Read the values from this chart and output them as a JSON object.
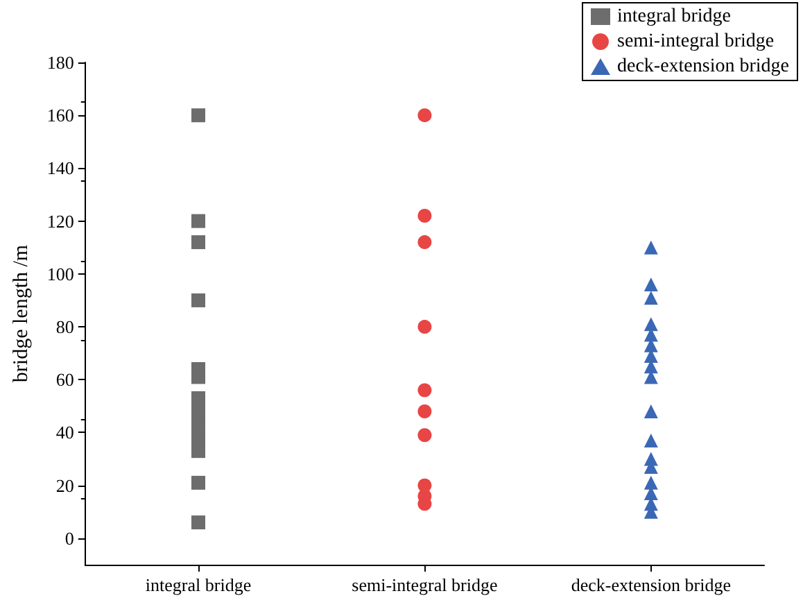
{
  "chart_data": {
    "type": "scatter",
    "ylabel": "bridge length /m",
    "categories": [
      "integral bridge",
      "semi-integral bridge",
      "deck-extension bridge"
    ],
    "series": [
      {
        "name": "integral bridge",
        "color": "#6d6d6d",
        "marker": "square",
        "x": [
          "integral bridge",
          "integral bridge",
          "integral bridge",
          "integral bridge",
          "integral bridge",
          "integral bridge",
          "integral bridge",
          "integral bridge",
          "integral bridge",
          "integral bridge",
          "integral bridge",
          "integral bridge",
          "integral bridge",
          "integral bridge"
        ],
        "values": [
          160,
          120,
          112,
          90,
          64,
          61,
          53,
          49,
          45,
          41,
          37,
          33,
          21,
          6
        ]
      },
      {
        "name": "semi-integral bridge",
        "color": "#e84545",
        "marker": "circle",
        "x": [
          "semi-integral bridge",
          "semi-integral bridge",
          "semi-integral bridge",
          "semi-integral bridge",
          "semi-integral bridge",
          "semi-integral bridge",
          "semi-integral bridge",
          "semi-integral bridge",
          "semi-integral bridge",
          "semi-integral bridge"
        ],
        "values": [
          160,
          122,
          112,
          80,
          56,
          48,
          39,
          20,
          16,
          13
        ]
      },
      {
        "name": "deck-extension bridge",
        "color": "#3a68b5",
        "marker": "triangle",
        "x": [
          "deck-extension bridge",
          "deck-extension bridge",
          "deck-extension bridge",
          "deck-extension bridge",
          "deck-extension bridge",
          "deck-extension bridge",
          "deck-extension bridge",
          "deck-extension bridge",
          "deck-extension bridge",
          "deck-extension bridge",
          "deck-extension bridge",
          "deck-extension bridge",
          "deck-extension bridge",
          "deck-extension bridge",
          "deck-extension bridge",
          "deck-extension bridge",
          "deck-extension bridge"
        ],
        "values": [
          110,
          96,
          91,
          81,
          77,
          73,
          69,
          65,
          61,
          48,
          37,
          30,
          27,
          21,
          17,
          13,
          10
        ]
      }
    ],
    "ylim": [
      -10,
      180
    ],
    "yticks": [
      0,
      20,
      40,
      60,
      80,
      100,
      120,
      140,
      160,
      180
    ],
    "grid": false,
    "legend": "top right"
  }
}
